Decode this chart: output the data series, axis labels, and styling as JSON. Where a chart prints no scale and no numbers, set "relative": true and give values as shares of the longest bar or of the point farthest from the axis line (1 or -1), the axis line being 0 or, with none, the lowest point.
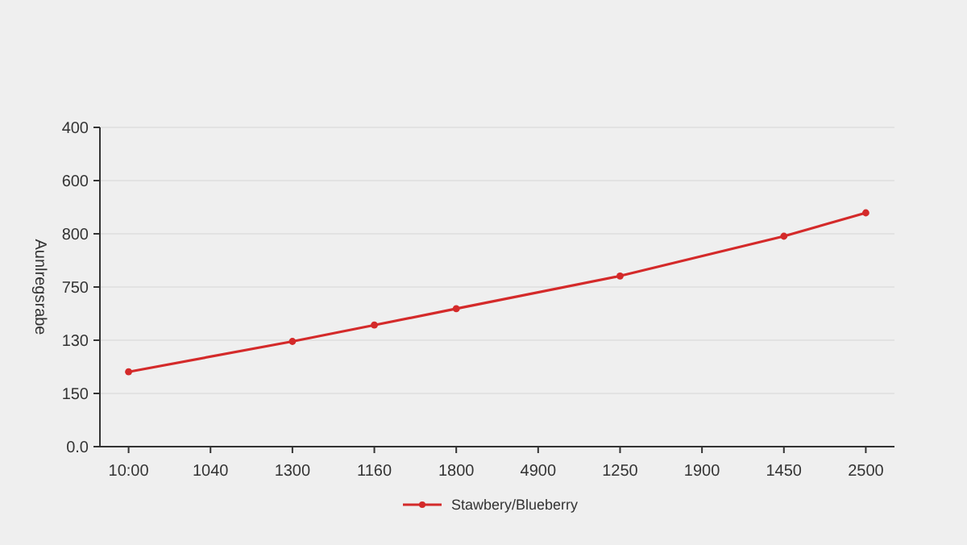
{
  "chart_data": {
    "type": "line",
    "ylabel": "Aunlregsrabe",
    "relative": true,
    "categories": [
      "10:00",
      "1040",
      "1300",
      "1160",
      "1800",
      "4900",
      "1250",
      "1900",
      "1450",
      "2500"
    ],
    "series": [
      {
        "name": "Stawbery/Blueberry",
        "color": "#d42a2a",
        "values": [
          0.32,
          null,
          0.45,
          0.52,
          0.59,
          null,
          0.73,
          null,
          0.9,
          1
        ]
      }
    ],
    "annotations": [
      "400",
      "600",
      "800",
      "750",
      "130",
      "150",
      "0.0"
    ],
    "grid": "y",
    "legend": "bottom",
    "marker": "circle",
    "line_style": "solid"
  }
}
